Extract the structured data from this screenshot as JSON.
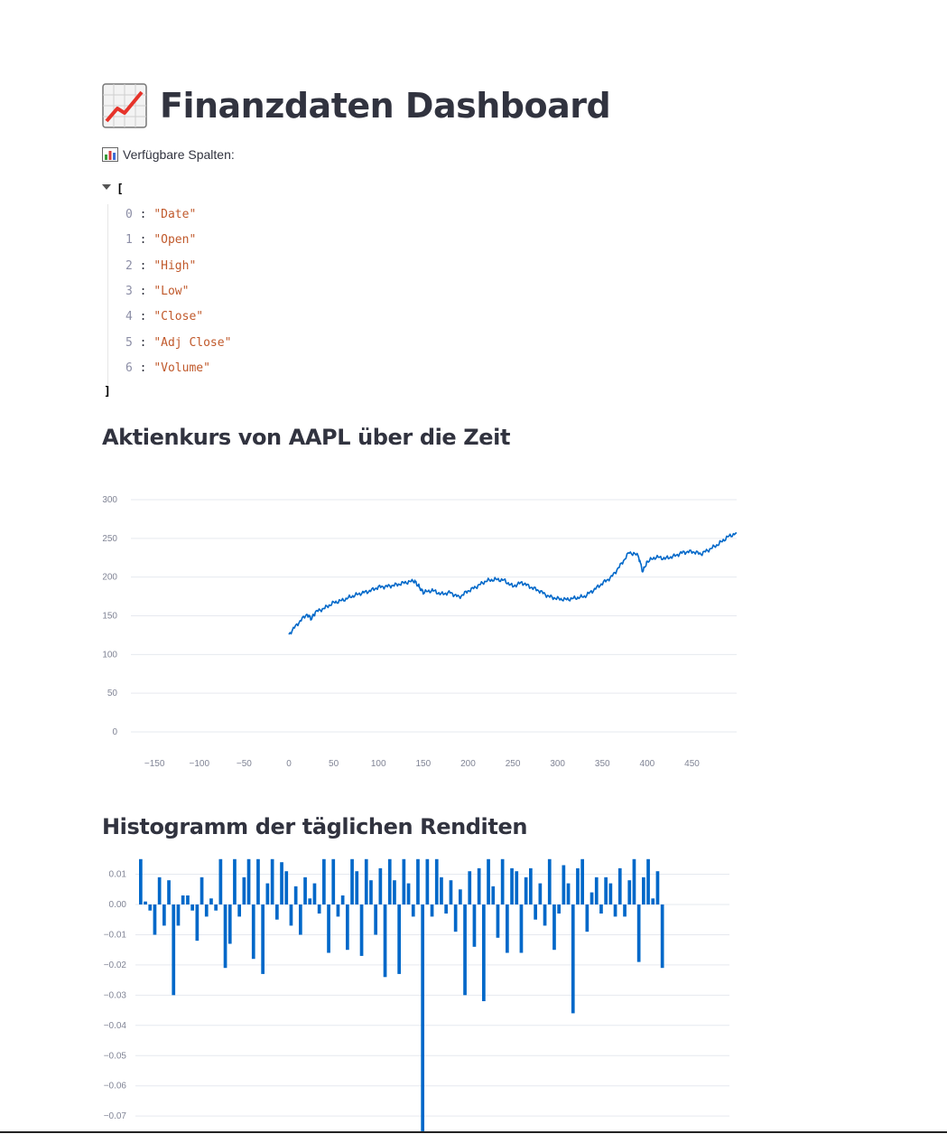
{
  "header": {
    "title": "Finanzdaten Dashboard",
    "title_icon": "chart-increasing-icon"
  },
  "columns_section": {
    "label": "Verfügbare Spalten:",
    "label_icon": "bar-chart-icon",
    "open_bracket": "[",
    "close_bracket": "]",
    "items": [
      {
        "index": "0",
        "value": "\"Date\""
      },
      {
        "index": "1",
        "value": "\"Open\""
      },
      {
        "index": "2",
        "value": "\"High\""
      },
      {
        "index": "3",
        "value": "\"Low\""
      },
      {
        "index": "4",
        "value": "\"Close\""
      },
      {
        "index": "5",
        "value": "\"Adj Close\""
      },
      {
        "index": "6",
        "value": "\"Volume\""
      }
    ]
  },
  "price_chart": {
    "heading": "Aktienkurs von AAPL über die Zeit",
    "color": "#0068c9"
  },
  "returns_chart": {
    "heading": "Histogramm der täglichen Renditen",
    "color": "#0068c9"
  },
  "chart_data": [
    {
      "type": "line",
      "title": "Aktienkurs von AAPL über die Zeit",
      "xlabel": "",
      "ylabel": "",
      "xlim": [
        -175,
        500
      ],
      "ylim": [
        0,
        300
      ],
      "x_ticks": [
        -150,
        -100,
        -50,
        0,
        50,
        100,
        150,
        200,
        250,
        300,
        350,
        400,
        450
      ],
      "y_ticks": [
        0,
        50,
        100,
        150,
        200,
        250,
        300
      ],
      "grid": true,
      "series": [
        {
          "x": [
            0,
            10,
            20,
            25,
            30,
            40,
            50,
            60,
            70,
            80,
            90,
            100,
            110,
            120,
            130,
            140,
            145,
            150,
            160,
            170,
            180,
            190,
            200,
            210,
            220,
            230,
            240,
            250,
            260,
            270,
            280,
            290,
            300,
            310,
            320,
            330,
            340,
            350,
            360,
            370,
            380,
            390,
            395,
            400,
            410,
            420,
            430,
            440,
            450,
            460,
            470,
            480,
            490,
            500
          ],
          "y": [
            126,
            140,
            152,
            146,
            155,
            160,
            167,
            170,
            175,
            179,
            182,
            187,
            188,
            190,
            193,
            195,
            188,
            180,
            183,
            178,
            180,
            174,
            182,
            188,
            195,
            197,
            196,
            188,
            193,
            187,
            182,
            175,
            172,
            171,
            173,
            175,
            183,
            192,
            200,
            215,
            232,
            228,
            207,
            220,
            226,
            224,
            227,
            232,
            233,
            230,
            236,
            243,
            252,
            257
          ]
        }
      ]
    },
    {
      "type": "bar",
      "title": "Histogramm der täglichen Renditen",
      "xlabel": "",
      "ylabel": "",
      "ylim": [
        -0.075,
        0.015
      ],
      "y_ticks": [
        0.01,
        0.0,
        -0.01,
        -0.02,
        -0.03,
        -0.04,
        -0.05,
        -0.06,
        -0.07
      ],
      "y_tick_labels": [
        "0.01",
        "0.00",
        "−0.01",
        "−0.02",
        "−0.03",
        "−0.04",
        "−0.05",
        "−0.06",
        "−0.07"
      ],
      "grid": true,
      "values": [
        0.015,
        0.001,
        -0.002,
        -0.01,
        0.009,
        -0.007,
        0.008,
        -0.03,
        -0.007,
        0.003,
        0.003,
        -0.002,
        -0.012,
        0.009,
        -0.004,
        0.002,
        -0.002,
        0.015,
        -0.021,
        -0.013,
        0.015,
        -0.004,
        0.009,
        0.015,
        -0.018,
        0.015,
        -0.023,
        0.007,
        0.015,
        -0.005,
        0.014,
        0.011,
        -0.007,
        0.006,
        -0.01,
        0.009,
        0.002,
        0.007,
        -0.003,
        0.015,
        -0.016,
        0.015,
        -0.004,
        0.003,
        -0.015,
        0.015,
        0.011,
        -0.017,
        0.015,
        0.008,
        -0.01,
        0.012,
        -0.024,
        0.015,
        0.008,
        -0.023,
        0.015,
        0.007,
        -0.004,
        0.015,
        -0.075,
        0.015,
        -0.004,
        0.015,
        0.009,
        -0.003,
        0.008,
        -0.009,
        0.005,
        -0.03,
        0.011,
        -0.014,
        0.012,
        -0.032,
        0.015,
        0.006,
        -0.011,
        0.015,
        -0.016,
        0.012,
        0.011,
        -0.016,
        0.009,
        0.012,
        -0.005,
        0.007,
        -0.007,
        0.015,
        -0.015,
        -0.003,
        0.013,
        0.007,
        -0.036,
        0.012,
        0.015,
        -0.009,
        0.004,
        0.009,
        -0.003,
        0.009,
        0.007,
        -0.004,
        0.012,
        -0.004,
        0.008,
        0.015,
        -0.019,
        0.009,
        0.015,
        0.002,
        0.011,
        -0.021
      ]
    }
  ]
}
